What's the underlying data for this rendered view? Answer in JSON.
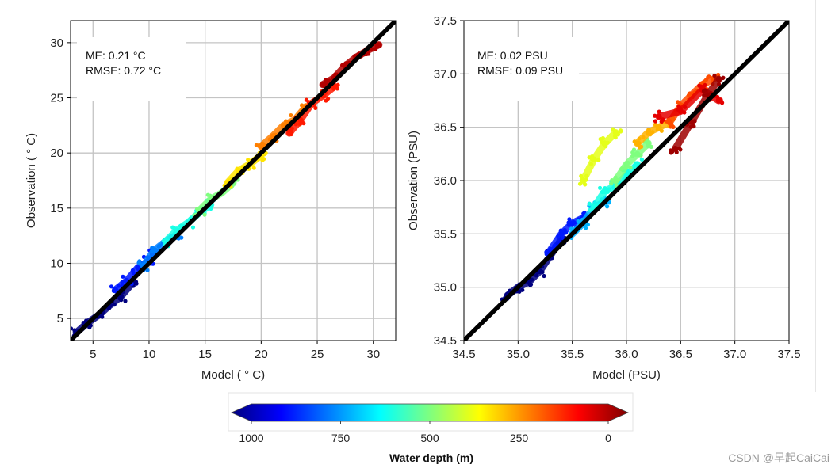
{
  "chart_data": [
    {
      "type": "scatter",
      "xlabel": "Model ( ° C)",
      "ylabel": "Observation ( ° C)",
      "xlim": [
        3,
        32
      ],
      "ylim": [
        3,
        32
      ],
      "xticks": [
        "5",
        "10",
        "15",
        "20",
        "25",
        "30"
      ],
      "yticks": [
        "5",
        "10",
        "15",
        "20",
        "25",
        "30"
      ],
      "grid": true,
      "annotations": [
        "ME: 0.21 °C",
        "RMSE: 0.72 °C"
      ],
      "reference_line": "1:1",
      "color_by": "Water depth (m)",
      "series": [
        {
          "depth_m": 1000,
          "x": [
            3.5,
            4.5,
            5.5,
            6.5,
            7.5,
            8.5
          ],
          "y": [
            3.7,
            4.6,
            5.3,
            6.2,
            7.0,
            8.2
          ]
        },
        {
          "depth_m": 850,
          "x": [
            7.0,
            8.0,
            9.0,
            10.0,
            10.5
          ],
          "y": [
            7.6,
            8.4,
            9.6,
            10.2,
            10.8
          ]
        },
        {
          "depth_m": 750,
          "x": [
            9.5,
            10.5,
            11.5,
            12.5
          ],
          "y": [
            9.8,
            11.2,
            12.0,
            12.6
          ]
        },
        {
          "depth_m": 600,
          "x": [
            11.5,
            12.5,
            13.5,
            14.5,
            15.5
          ],
          "y": [
            12.0,
            13.0,
            13.7,
            14.6,
            15.3
          ]
        },
        {
          "depth_m": 500,
          "x": [
            14.5,
            15.5,
            16.5,
            17.5
          ],
          "y": [
            14.8,
            15.8,
            16.4,
            17.3
          ]
        },
        {
          "depth_m": 350,
          "x": [
            17.0,
            18.0,
            19.0,
            20.0
          ],
          "y": [
            17.3,
            18.4,
            19.0,
            19.8
          ]
        },
        {
          "depth_m": 250,
          "x": [
            20.0,
            21.0,
            22.0,
            23.0,
            24.0
          ],
          "y": [
            20.6,
            21.5,
            22.5,
            23.0,
            24.2
          ]
        },
        {
          "depth_m": 150,
          "x": [
            22.5,
            23.5,
            24.5,
            25.5,
            26.5
          ],
          "y": [
            21.8,
            23.0,
            24.5,
            25.2,
            26.0
          ]
        },
        {
          "depth_m": 50,
          "x": [
            25.5,
            26.5,
            27.5,
            28.5,
            29.5,
            30.5
          ],
          "y": [
            26.2,
            26.8,
            27.9,
            28.7,
            29.3,
            29.8
          ]
        }
      ]
    },
    {
      "type": "scatter",
      "xlabel": "Model (PSU)",
      "ylabel": "Observation (PSU)",
      "xlim": [
        34.5,
        37.5
      ],
      "ylim": [
        34.5,
        37.5
      ],
      "xticks": [
        "34.5",
        "35.0",
        "35.5",
        "36.0",
        "36.5",
        "37.0",
        "37.5"
      ],
      "yticks": [
        "34.5",
        "35.0",
        "35.5",
        "36.0",
        "36.5",
        "37.0",
        "37.5"
      ],
      "grid": true,
      "annotations": [
        "ME: 0.02 PSU",
        "RMSE: 0.09 PSU"
      ],
      "reference_line": "1:1",
      "color_by": "Water depth (m)",
      "series": [
        {
          "depth_m": 1000,
          "x": [
            34.9,
            35.0,
            35.1,
            35.2,
            35.3,
            35.4
          ],
          "y": [
            34.92,
            35.0,
            35.05,
            35.15,
            35.3,
            35.45
          ]
        },
        {
          "depth_m": 850,
          "x": [
            35.3,
            35.4,
            35.5,
            35.6
          ],
          "y": [
            35.35,
            35.5,
            35.6,
            35.65
          ]
        },
        {
          "depth_m": 700,
          "x": [
            35.5,
            35.6,
            35.7,
            35.8
          ],
          "y": [
            35.5,
            35.6,
            35.75,
            35.8
          ]
        },
        {
          "depth_m": 600,
          "x": [
            35.7,
            35.8,
            35.9,
            36.0,
            36.1
          ],
          "y": [
            35.75,
            35.9,
            35.95,
            36.05,
            36.15
          ]
        },
        {
          "depth_m": 500,
          "x": [
            35.9,
            36.0,
            36.1,
            36.2
          ],
          "y": [
            36.0,
            36.15,
            36.25,
            36.35
          ]
        },
        {
          "depth_m": 400,
          "x": [
            35.6,
            35.7,
            35.8,
            35.9
          ],
          "y": [
            36.0,
            36.2,
            36.35,
            36.45
          ]
        },
        {
          "depth_m": 300,
          "x": [
            36.1,
            36.2,
            36.3,
            36.4
          ],
          "y": [
            36.35,
            36.45,
            36.5,
            36.55
          ]
        },
        {
          "depth_m": 200,
          "x": [
            36.4,
            36.5,
            36.6,
            36.7,
            36.8
          ],
          "y": [
            36.55,
            36.7,
            36.8,
            36.9,
            36.95
          ]
        },
        {
          "depth_m": 100,
          "x": [
            36.3,
            36.5,
            36.7,
            36.85
          ],
          "y": [
            36.6,
            36.65,
            36.85,
            36.75
          ]
        },
        {
          "depth_m": 30,
          "x": [
            36.45,
            36.6,
            36.75,
            36.85
          ],
          "y": [
            36.3,
            36.55,
            36.8,
            36.95
          ]
        }
      ]
    }
  ],
  "colorbar": {
    "title": "Water depth (m)",
    "ticks": [
      "1000",
      "750",
      "500",
      "250",
      "0"
    ],
    "colormap": [
      "#00007f",
      "#0000ff",
      "#007fff",
      "#00ffff",
      "#7fff7f",
      "#ffff00",
      "#ff7f00",
      "#ff0000",
      "#7f0000"
    ]
  },
  "watermark": "CSDN @早起CaiCai"
}
